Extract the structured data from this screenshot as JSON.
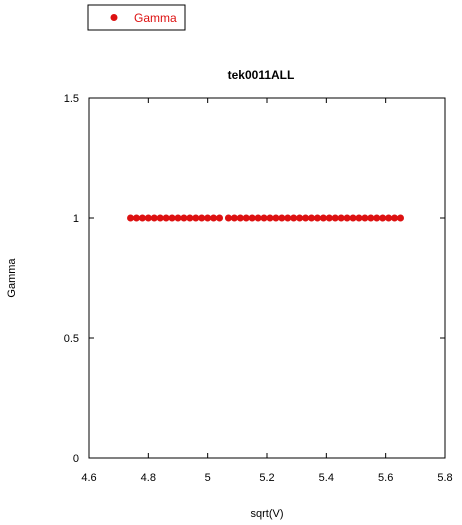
{
  "chart_data": {
    "type": "scatter",
    "title": "tek0011ALL",
    "xlabel": "sqrt(V)",
    "ylabel": "Gamma",
    "xlim": [
      4.6,
      5.8
    ],
    "ylim": [
      0,
      1.5
    ],
    "xticks": [
      "4.6",
      "4.8",
      "5",
      "5.2",
      "5.4",
      "5.6",
      "5.8"
    ],
    "yticks": [
      "0",
      "0.5",
      "1",
      "1.5"
    ],
    "legend_position": "top-left",
    "grid": false,
    "series": [
      {
        "name": "Gamma",
        "color": "#dd1111",
        "x": [
          4.74,
          4.76,
          4.78,
          4.8,
          4.82,
          4.84,
          4.86,
          4.88,
          4.9,
          4.92,
          4.94,
          4.96,
          4.98,
          5.0,
          5.02,
          5.04,
          5.07,
          5.09,
          5.11,
          5.13,
          5.15,
          5.17,
          5.19,
          5.21,
          5.23,
          5.25,
          5.27,
          5.29,
          5.31,
          5.33,
          5.35,
          5.37,
          5.39,
          5.41,
          5.43,
          5.45,
          5.47,
          5.49,
          5.51,
          5.53,
          5.55,
          5.57,
          5.59,
          5.61,
          5.63,
          5.65
        ],
        "y": [
          1,
          1,
          1,
          1,
          1,
          1,
          1,
          1,
          1,
          1,
          1,
          1,
          1,
          1,
          1,
          1,
          1,
          1,
          1,
          1,
          1,
          1,
          1,
          1,
          1,
          1,
          1,
          1,
          1,
          1,
          1,
          1,
          1,
          1,
          1,
          1,
          1,
          1,
          1,
          1,
          1,
          1,
          1,
          1,
          1,
          1
        ]
      }
    ]
  }
}
